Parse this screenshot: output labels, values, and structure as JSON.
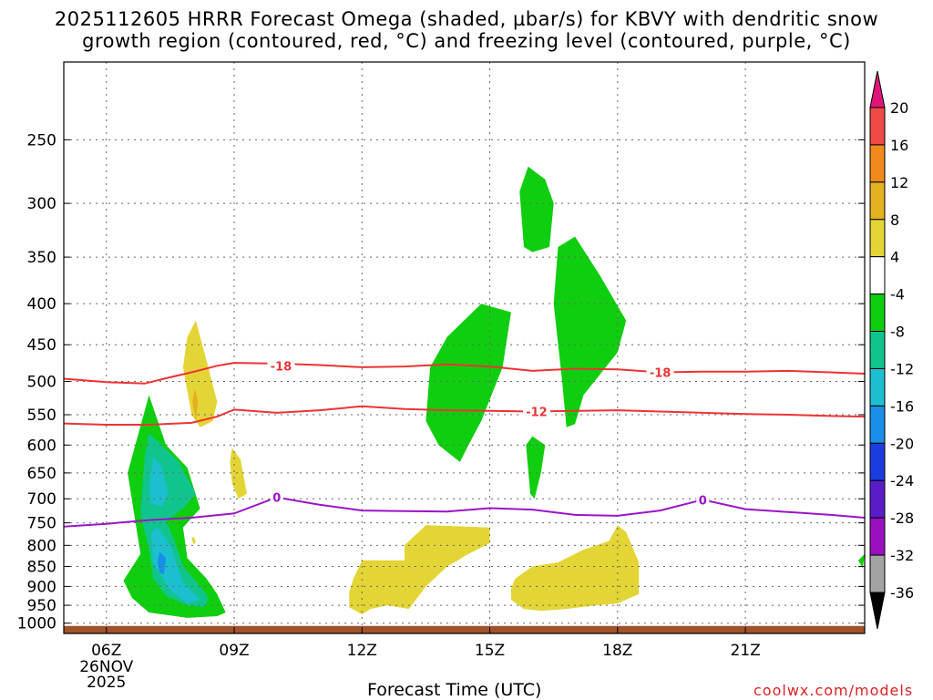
{
  "chart_data": {
    "type": "contour",
    "title_line1": "2025112605 HRRR Forecast Omega (shaded, µbar/s) for KBVY with dendritic snow",
    "title_line2": "growth region (contoured, red, °C) and freezing level (contoured, purple, °C)",
    "xlabel": "Forecast Time (UTC)",
    "credit": "coolwx.com/models",
    "x_range_hours": [
      5,
      23.8
    ],
    "x_ticks": [
      {
        "hour": 6,
        "label": "06Z"
      },
      {
        "hour": 9,
        "label": "09Z"
      },
      {
        "hour": 12,
        "label": "12Z"
      },
      {
        "hour": 15,
        "label": "15Z"
      },
      {
        "hour": 18,
        "label": "18Z"
      },
      {
        "hour": 21,
        "label": "21Z"
      }
    ],
    "date_label": [
      "26NOV",
      "2025"
    ],
    "y_axis": "pressure_hPa_log",
    "y_range": [
      200,
      1030
    ],
    "y_ticks": [
      250,
      300,
      350,
      400,
      450,
      500,
      550,
      600,
      650,
      700,
      750,
      800,
      850,
      900,
      950,
      1000
    ],
    "colorbar": {
      "ticks": [
        "20",
        "16",
        "12",
        "8",
        "4",
        "-4",
        "-8",
        "-12",
        "-16",
        "-20",
        "-24",
        "-28",
        "-32",
        "-36"
      ],
      "colors": [
        "#ff3366",
        "#f04a46",
        "#f08a1c",
        "#e3b020",
        "#e3d535",
        "#ffffff",
        "#0fce0f",
        "#10c58d",
        "#1cbfd0",
        "#1a8fe8",
        "#1c3ce0",
        "#5a1cc8",
        "#9a0fc0",
        "#a3a3a3",
        "#000000"
      ],
      "top_arrow_color": "#e0157a",
      "bottom_arrow_color": "#000000"
    },
    "omega_regions": [
      {
        "level": "4",
        "color": "#e3d535",
        "points": [
          [
            8.0,
            550
          ],
          [
            7.8,
            480
          ],
          [
            7.9,
            440
          ],
          [
            8.1,
            420
          ],
          [
            8.3,
            460
          ],
          [
            8.6,
            530
          ],
          [
            8.5,
            560
          ],
          [
            8.2,
            570
          ]
        ]
      },
      {
        "level": "8",
        "color": "#e3b020",
        "points": [
          [
            8.08,
            510
          ],
          [
            8.02,
            530
          ],
          [
            8.1,
            560
          ],
          [
            8.15,
            530
          ]
        ]
      },
      {
        "level": "4",
        "color": "#e3d535",
        "points": [
          [
            8.9,
            630
          ],
          [
            8.95,
            605
          ],
          [
            9.15,
            625
          ],
          [
            9.3,
            690
          ],
          [
            9.1,
            700
          ],
          [
            8.95,
            670
          ]
        ]
      },
      {
        "level": "4",
        "color": "#e3d535",
        "points": [
          [
            8.0,
            785
          ],
          [
            8.05,
            780
          ],
          [
            8.1,
            792
          ],
          [
            8.05,
            798
          ]
        ]
      },
      {
        "level": "-4",
        "color": "#0fce0f",
        "points": [
          [
            6.4,
            885
          ],
          [
            6.8,
            820
          ],
          [
            6.5,
            650
          ],
          [
            7.0,
            520
          ],
          [
            7.4,
            600
          ],
          [
            7.9,
            640
          ],
          [
            8.2,
            720
          ],
          [
            7.8,
            760
          ],
          [
            7.9,
            830
          ],
          [
            8.35,
            880
          ],
          [
            8.6,
            920
          ],
          [
            8.8,
            970
          ],
          [
            8.6,
            980
          ],
          [
            7.9,
            985
          ],
          [
            7.0,
            970
          ],
          [
            6.6,
            930
          ]
        ]
      },
      {
        "level": "-8",
        "color": "#10c58d",
        "points": [
          [
            7.1,
            880
          ],
          [
            7.0,
            810
          ],
          [
            6.8,
            730
          ],
          [
            6.9,
            620
          ],
          [
            7.0,
            580
          ],
          [
            7.3,
            600
          ],
          [
            7.7,
            630
          ],
          [
            8.1,
            690
          ],
          [
            7.8,
            720
          ],
          [
            7.4,
            745
          ],
          [
            7.6,
            790
          ],
          [
            7.8,
            850
          ],
          [
            8.2,
            900
          ],
          [
            8.4,
            930
          ],
          [
            8.3,
            955
          ],
          [
            7.9,
            950
          ],
          [
            7.4,
            925
          ]
        ]
      },
      {
        "level": "-12",
        "color": "#1cbfd0",
        "points": [
          [
            7.1,
            840
          ],
          [
            7.05,
            770
          ],
          [
            7.2,
            760
          ],
          [
            7.5,
            800
          ],
          [
            7.8,
            890
          ],
          [
            8.2,
            935
          ],
          [
            7.9,
            945
          ],
          [
            7.5,
            910
          ]
        ]
      },
      {
        "level": "-12",
        "color": "#1cbfd0",
        "points": [
          [
            7.0,
            680
          ],
          [
            7.1,
            620
          ],
          [
            7.3,
            640
          ],
          [
            7.45,
            690
          ],
          [
            7.3,
            715
          ],
          [
            7.05,
            710
          ]
        ]
      },
      {
        "level": "-16",
        "color": "#1a8fe8",
        "points": [
          [
            7.2,
            840
          ],
          [
            7.25,
            815
          ],
          [
            7.4,
            830
          ],
          [
            7.35,
            870
          ],
          [
            7.25,
            865
          ]
        ]
      },
      {
        "level": "-4",
        "color": "#0fce0f",
        "points": [
          [
            13.5,
            560
          ],
          [
            13.6,
            480
          ],
          [
            14.0,
            440
          ],
          [
            14.8,
            400
          ],
          [
            15.5,
            410
          ],
          [
            15.3,
            480
          ],
          [
            14.8,
            560
          ],
          [
            14.5,
            600
          ],
          [
            14.3,
            630
          ],
          [
            13.8,
            600
          ]
        ]
      },
      {
        "level": "-4",
        "color": "#0fce0f",
        "points": [
          [
            15.95,
            690
          ],
          [
            15.85,
            600
          ],
          [
            16.0,
            585
          ],
          [
            16.3,
            600
          ],
          [
            16.2,
            650
          ],
          [
            16.05,
            700
          ]
        ]
      },
      {
        "level": "-4",
        "color": "#0fce0f",
        "points": [
          [
            15.8,
            340
          ],
          [
            15.7,
            290
          ],
          [
            15.9,
            270
          ],
          [
            16.3,
            280
          ],
          [
            16.5,
            300
          ],
          [
            16.4,
            340
          ],
          [
            16.0,
            345
          ]
        ]
      },
      {
        "level": "-4",
        "color": "#0fce0f",
        "points": [
          [
            16.5,
            400
          ],
          [
            16.6,
            340
          ],
          [
            17.0,
            330
          ],
          [
            17.6,
            370
          ],
          [
            18.2,
            420
          ],
          [
            18.0,
            460
          ],
          [
            17.2,
            520
          ],
          [
            17.0,
            565
          ],
          [
            16.8,
            570
          ],
          [
            16.7,
            500
          ]
        ]
      },
      {
        "level": "-4",
        "color": "#0fce0f",
        "points": [
          [
            23.75,
            855
          ],
          [
            23.65,
            835
          ],
          [
            23.8,
            820
          ]
        ]
      },
      {
        "level": "4",
        "color": "#e3d535",
        "points": [
          [
            11.7,
            915
          ],
          [
            11.8,
            880
          ],
          [
            12.0,
            835
          ],
          [
            13.0,
            835
          ],
          [
            13.0,
            800
          ],
          [
            13.5,
            755
          ],
          [
            15.0,
            760
          ],
          [
            15.0,
            795
          ],
          [
            14.5,
            820
          ],
          [
            14.0,
            850
          ],
          [
            13.5,
            900
          ],
          [
            13.1,
            960
          ],
          [
            12.6,
            950
          ],
          [
            12.2,
            960
          ],
          [
            12.0,
            975
          ],
          [
            11.7,
            955
          ]
        ]
      },
      {
        "level": "4",
        "color": "#e3d535",
        "points": [
          [
            15.5,
            905
          ],
          [
            15.6,
            880
          ],
          [
            16.0,
            850
          ],
          [
            16.6,
            840
          ],
          [
            17.2,
            810
          ],
          [
            17.8,
            790
          ],
          [
            18.0,
            755
          ],
          [
            18.2,
            770
          ],
          [
            18.5,
            840
          ],
          [
            18.5,
            920
          ],
          [
            18.0,
            945
          ],
          [
            17.5,
            950
          ],
          [
            16.8,
            960
          ],
          [
            16.2,
            965
          ],
          [
            15.8,
            960
          ],
          [
            15.5,
            935
          ]
        ]
      }
    ],
    "contours": [
      {
        "name": "-18",
        "color": "#ee3333",
        "label": "-18",
        "label_at": [
          [
            10.1,
            478
          ],
          [
            19.0,
            487
          ]
        ],
        "points": [
          [
            5,
            496
          ],
          [
            6,
            501
          ],
          [
            6.9,
            503
          ],
          [
            7.5,
            494
          ],
          [
            8,
            487
          ],
          [
            8.6,
            478
          ],
          [
            9,
            474
          ],
          [
            10,
            475
          ],
          [
            11,
            477
          ],
          [
            12,
            480
          ],
          [
            13,
            479
          ],
          [
            14,
            476
          ],
          [
            15,
            479
          ],
          [
            16,
            485
          ],
          [
            17,
            482
          ],
          [
            18,
            483
          ],
          [
            19,
            487
          ],
          [
            20,
            486
          ],
          [
            21,
            486
          ],
          [
            22,
            485
          ],
          [
            23,
            487
          ],
          [
            23.8,
            489
          ]
        ]
      },
      {
        "name": "-12",
        "color": "#ee3333",
        "label": "-12",
        "label_at": [
          [
            16.1,
            545
          ]
        ],
        "points": [
          [
            5,
            564
          ],
          [
            6,
            566
          ],
          [
            7,
            566
          ],
          [
            8,
            563
          ],
          [
            8.6,
            553
          ],
          [
            9,
            542
          ],
          [
            10,
            547
          ],
          [
            11,
            543
          ],
          [
            12,
            537
          ],
          [
            13,
            541
          ],
          [
            14,
            543
          ],
          [
            15,
            544
          ],
          [
            16,
            545
          ],
          [
            17,
            544
          ],
          [
            18,
            543
          ],
          [
            19,
            545
          ],
          [
            20,
            547
          ],
          [
            21,
            549
          ],
          [
            22,
            550
          ],
          [
            23,
            552
          ],
          [
            23.8,
            553
          ]
        ]
      },
      {
        "name": "0",
        "color": "#9b14c8",
        "label": "0",
        "label_at": [
          [
            10.0,
            697
          ],
          [
            20.0,
            702
          ]
        ],
        "points": [
          [
            5,
            758
          ],
          [
            6,
            752
          ],
          [
            7,
            744
          ],
          [
            8,
            739
          ],
          [
            9,
            730
          ],
          [
            10,
            697
          ],
          [
            11,
            712
          ],
          [
            12,
            724
          ],
          [
            13,
            725
          ],
          [
            14,
            726
          ],
          [
            15,
            719
          ],
          [
            16,
            722
          ],
          [
            17,
            733
          ],
          [
            18,
            735
          ],
          [
            19,
            724
          ],
          [
            20,
            702
          ],
          [
            21,
            721
          ],
          [
            22,
            727
          ],
          [
            23,
            733
          ],
          [
            23.8,
            739
          ]
        ]
      }
    ],
    "ground": {
      "color": "#a0522d",
      "from_hpa": 1008
    }
  }
}
